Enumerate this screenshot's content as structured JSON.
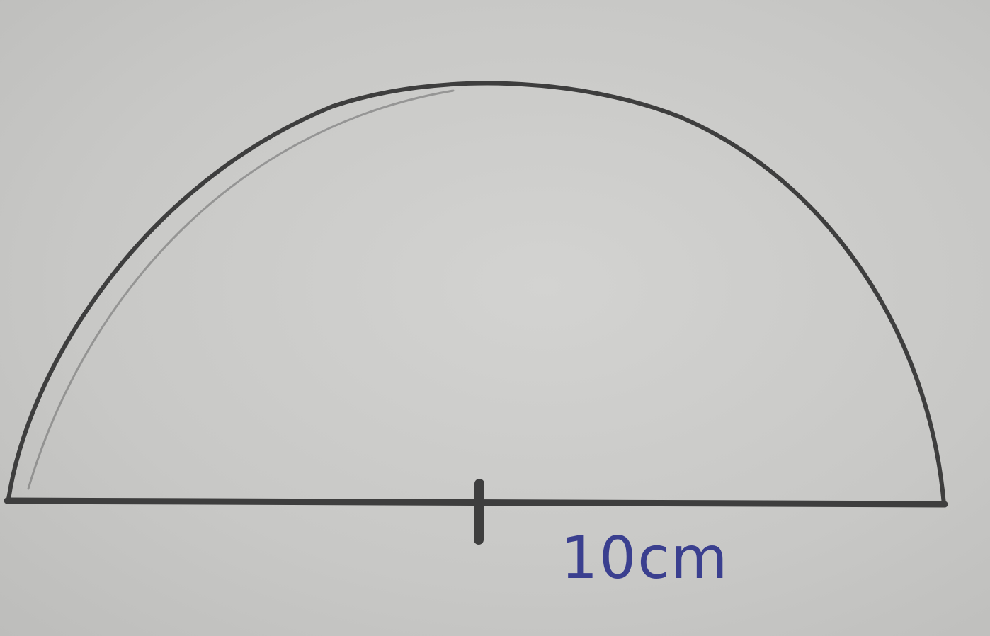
{
  "diagram": {
    "shape": "semicircle",
    "marks": [
      "center-tick"
    ],
    "radius_label": "10cm",
    "colors": {
      "paper": "#c9c9c7",
      "pencil": "#3e3e3e",
      "ink": "#3a3f8f"
    }
  }
}
